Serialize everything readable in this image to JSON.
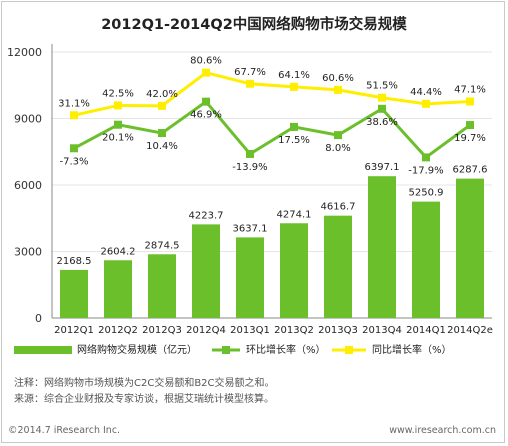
{
  "chart_data": {
    "type": "bar",
    "title": "2012Q1-2014Q2中国网络购物市场交易规模",
    "categories": [
      "2012Q1",
      "2012Q2",
      "2012Q3",
      "2012Q4",
      "2013Q1",
      "2013Q2",
      "2013Q3",
      "2013Q4",
      "2014Q1",
      "2014Q2e"
    ],
    "ylim": [
      0,
      12000
    ],
    "yticks": [
      0,
      3000,
      6000,
      9000,
      12000
    ],
    "legend_position": "bottom",
    "series": [
      {
        "name": "网络购物交易规模（亿元）",
        "kind": "bar",
        "color": "#6bbf2a",
        "values": [
          2168.5,
          2604.2,
          2874.5,
          4223.7,
          3637.1,
          4274.1,
          4616.7,
          6397.1,
          5250.9,
          6287.6
        ],
        "labels": [
          "2168.5",
          "2604.2",
          "2874.5",
          "4223.7",
          "3637.1",
          "4274.1",
          "4616.7",
          "6397.1",
          "5250.9",
          "6287.6"
        ]
      },
      {
        "name": "环比增长率（%）",
        "kind": "line",
        "color": "#6bbf2a",
        "values": [
          -7.3,
          20.1,
          10.4,
          46.9,
          -13.9,
          17.5,
          8.0,
          38.6,
          -17.9,
          19.7
        ],
        "labels": [
          "-7.3%",
          "20.1%",
          "10.4%",
          "46.9%",
          "-13.9%",
          "17.5%",
          "8.0%",
          "38.6%",
          "-17.9%",
          "19.7%"
        ]
      },
      {
        "name": "同比增长率（%）",
        "kind": "line",
        "color": "#ffee00",
        "values": [
          31.1,
          42.5,
          42.0,
          80.6,
          67.7,
          64.1,
          60.6,
          51.5,
          44.4,
          47.1
        ],
        "labels": [
          "31.1%",
          "42.5%",
          "42.0%",
          "80.6%",
          "67.7%",
          "64.1%",
          "60.6%",
          "51.5%",
          "44.4%",
          "47.1%"
        ]
      }
    ]
  },
  "notes": {
    "line1": "注释：网络购物市场规模为C2C交易额和B2C交易额之和。",
    "line2": "来源：综合企业财报及专家访谈，根据艾瑞统计模型核算。"
  },
  "footer": {
    "copyright": "©2014.7 iResearch Inc.",
    "website": "www.iresearch.com.cn"
  }
}
